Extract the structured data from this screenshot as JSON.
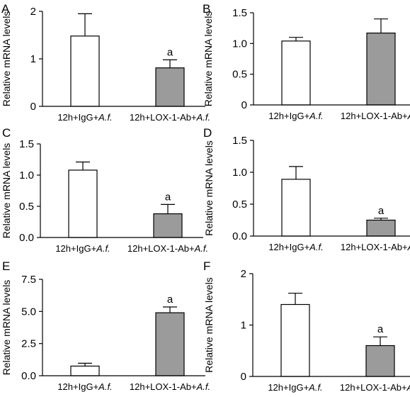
{
  "chart_data": [
    {
      "type": "bar",
      "panel_label": "A",
      "categories": [
        "12h+IgG+",
        "12h+LOX-1-Ab+"
      ],
      "category_italic_suffix": "A.f.",
      "values": [
        1.48,
        0.81
      ],
      "error_up": [
        0.47,
        0.17
      ],
      "bar_fills": [
        "#ffffff",
        "#9b9b9b"
      ],
      "significance": [
        "",
        "a"
      ],
      "ylabel": "Relative mRNA levels",
      "ylim": [
        0,
        2
      ],
      "yticks": [
        0,
        1,
        2
      ],
      "ytick_labels": [
        "0",
        "1",
        "2"
      ]
    },
    {
      "type": "bar",
      "panel_label": "B",
      "categories": [
        "12h+IgG+",
        "12h+LOX-1-Ab+"
      ],
      "category_italic_suffix": "A.f.",
      "values": [
        1.04,
        1.17
      ],
      "error_up": [
        0.06,
        0.23
      ],
      "bar_fills": [
        "#ffffff",
        "#9b9b9b"
      ],
      "significance": [
        "",
        ""
      ],
      "ylabel": "Relative mRNA levels",
      "ylim": [
        0,
        1.5
      ],
      "yticks": [
        0,
        0.5,
        1.0,
        1.5
      ],
      "ytick_labels": [
        "0",
        "0.5",
        "1.0",
        "1.5"
      ]
    },
    {
      "type": "bar",
      "panel_label": "C",
      "categories": [
        "12h+IgG+",
        "12h+LOX-1-Ab+"
      ],
      "category_italic_suffix": "A.f.",
      "values": [
        1.08,
        0.38
      ],
      "error_up": [
        0.13,
        0.15
      ],
      "bar_fills": [
        "#ffffff",
        "#9b9b9b"
      ],
      "significance": [
        "",
        "a"
      ],
      "ylabel": "Relative mRNA levels",
      "ylim": [
        0,
        1.5
      ],
      "yticks": [
        0,
        0.5,
        1.0,
        1.5
      ],
      "ytick_labels": [
        "0.0",
        "0.5",
        "1.0",
        "1.5"
      ]
    },
    {
      "type": "bar",
      "panel_label": "D",
      "categories": [
        "12h+IgG+",
        "12h+LOX-1-Ab+"
      ],
      "category_italic_suffix": "A.f.",
      "values": [
        0.89,
        0.25
      ],
      "error_up": [
        0.2,
        0.03
      ],
      "bar_fills": [
        "#ffffff",
        "#9b9b9b"
      ],
      "significance": [
        "",
        "a"
      ],
      "ylabel": "Relative mRNA levels",
      "ylim": [
        0,
        1.5
      ],
      "yticks": [
        0,
        0.5,
        1.0,
        1.5
      ],
      "ytick_labels": [
        "0.0",
        "0.5",
        "1.0",
        "1.5"
      ]
    },
    {
      "type": "bar",
      "panel_label": "E",
      "categories": [
        "12h+IgG+",
        "12h+LOX-1-Ab+"
      ],
      "category_italic_suffix": "A.f.",
      "values": [
        0.75,
        4.9
      ],
      "error_up": [
        0.22,
        0.45
      ],
      "bar_fills": [
        "#ffffff",
        "#9b9b9b"
      ],
      "significance": [
        "",
        "a"
      ],
      "ylabel": "Relative mRNA levels",
      "ylim": [
        0,
        7.5
      ],
      "yticks": [
        0,
        2.5,
        5.0,
        7.5
      ],
      "ytick_labels": [
        "0.0",
        "2.5",
        "5.0",
        "7.5"
      ]
    },
    {
      "type": "bar",
      "panel_label": "F",
      "categories": [
        "12h+IgG+",
        "12h+LOX-1-Ab+"
      ],
      "category_italic_suffix": "A.f.",
      "values": [
        1.4,
        0.6
      ],
      "error_up": [
        0.22,
        0.17
      ],
      "bar_fills": [
        "#ffffff",
        "#9b9b9b"
      ],
      "significance": [
        "",
        "a"
      ],
      "ylabel": "Relative mRNA levels",
      "ylim": [
        0,
        2
      ],
      "yticks": [
        0,
        1,
        2
      ],
      "ytick_labels": [
        "0",
        "1",
        "2"
      ]
    }
  ]
}
